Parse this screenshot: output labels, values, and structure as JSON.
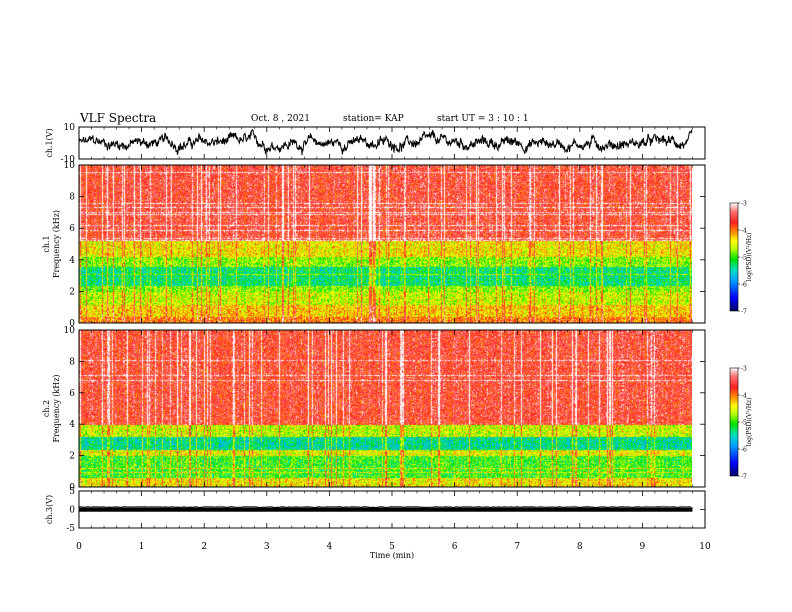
{
  "header": {
    "title": "VLF Spectra",
    "date": "Oct. 8  , 2021",
    "station": "station= KAP",
    "start": "start  UT  =   3  : 10 : 1"
  },
  "chart_data": [
    {
      "type": "line",
      "name": "ch1-waveform",
      "ylabel": "ch.1(V)",
      "ylim": [
        -10,
        10
      ],
      "yticks": [
        "10",
        "-10"
      ],
      "xlim": [
        0,
        10
      ],
      "description_values": "noisy waveform oscillating roughly between -10 and 10 V from 0 to 9.8 min"
    },
    {
      "type": "heatmap",
      "name": "ch1-spectrogram",
      "ylabel": "ch.1\nFrequency (kHz)",
      "ylim": [
        0,
        10
      ],
      "yticks": [
        "0",
        "2",
        "4",
        "6",
        "8",
        "10"
      ],
      "xlim": [
        0,
        10
      ],
      "data_extent_min": 9.8,
      "bands_kHz_log10_PSD": [
        {
          "from": 0.0,
          "to": 0.4,
          "level": -4.0
        },
        {
          "from": 0.4,
          "to": 1.2,
          "level": -4.3
        },
        {
          "from": 1.2,
          "to": 2.0,
          "level": -4.6
        },
        {
          "from": 2.0,
          "to": 2.4,
          "level": -4.8
        },
        {
          "from": 2.4,
          "to": 3.6,
          "level": -5.3
        },
        {
          "from": 3.6,
          "to": 4.2,
          "level": -4.8
        },
        {
          "from": 4.2,
          "to": 5.2,
          "level": -4.4
        },
        {
          "from": 5.2,
          "to": 10.0,
          "level": -3.6
        }
      ],
      "colorbar": {
        "label": "log(PSD)(V²/Hz)",
        "range": [
          -7,
          -3
        ],
        "ticks": [
          "-3",
          "-4",
          "-5",
          "-6",
          "-7"
        ]
      }
    },
    {
      "type": "heatmap",
      "name": "ch2-spectrogram",
      "ylabel": "ch.2\nFrequency (kHz)",
      "ylim": [
        0,
        10
      ],
      "yticks": [
        "0",
        "2",
        "4",
        "6",
        "8",
        "10"
      ],
      "xlim": [
        0,
        10
      ],
      "data_extent_min": 9.8,
      "bands_kHz_log10_PSD": [
        {
          "from": 0.0,
          "to": 0.6,
          "level": -4.4
        },
        {
          "from": 0.6,
          "to": 2.0,
          "level": -5.0
        },
        {
          "from": 2.0,
          "to": 2.4,
          "level": -4.5
        },
        {
          "from": 2.4,
          "to": 3.2,
          "level": -5.4
        },
        {
          "from": 3.2,
          "to": 4.0,
          "level": -4.6
        },
        {
          "from": 4.0,
          "to": 10.0,
          "level": -3.6
        }
      ],
      "colorbar": {
        "label": "log(PSD)(V²/Hz)",
        "range": [
          -7,
          -3
        ],
        "ticks": [
          "-3",
          "-4",
          "-5",
          "-6",
          "-7"
        ]
      }
    },
    {
      "type": "line",
      "name": "ch3-waveform",
      "ylabel": "ch.3(V)",
      "ylim": [
        -5,
        5
      ],
      "yticks": [
        "5",
        "0",
        "-5"
      ],
      "xlim": [
        0,
        10
      ],
      "description_values": "dense oscillation about 0 V with amplitude about 0.6 V"
    }
  ],
  "xaxis": {
    "label": "Time  (min)",
    "range": [
      0,
      10
    ],
    "ticks": [
      "0",
      "1",
      "2",
      "3",
      "4",
      "5",
      "6",
      "7",
      "8",
      "9",
      "10"
    ]
  },
  "colors": {
    "waveform": "#000000",
    "colormap_stops": [
      "#0000a0",
      "#0000ff",
      "#0090ff",
      "#00e0c0",
      "#00e000",
      "#c0ff00",
      "#ffff00",
      "#ff9900",
      "#ff2020",
      "#ff6060",
      "#ffffff"
    ]
  }
}
